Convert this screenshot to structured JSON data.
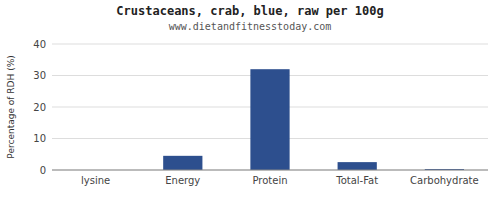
{
  "chart_data": {
    "type": "bar",
    "title": "Crustaceans, crab, blue, raw per 100g",
    "subtitle": "www.dietandfitnesstoday.com",
    "ylabel": "Percentage of RDH (%)",
    "categories": [
      "lysine",
      "Energy",
      "Protein",
      "Total-Fat",
      "Carbohydrate"
    ],
    "values": [
      0.0,
      4.5,
      32.0,
      2.5,
      0.3
    ],
    "color": "#2d4f8e",
    "ylim": [
      0,
      40
    ],
    "yticks": [
      0,
      10,
      20,
      30,
      40
    ],
    "grid": true
  }
}
